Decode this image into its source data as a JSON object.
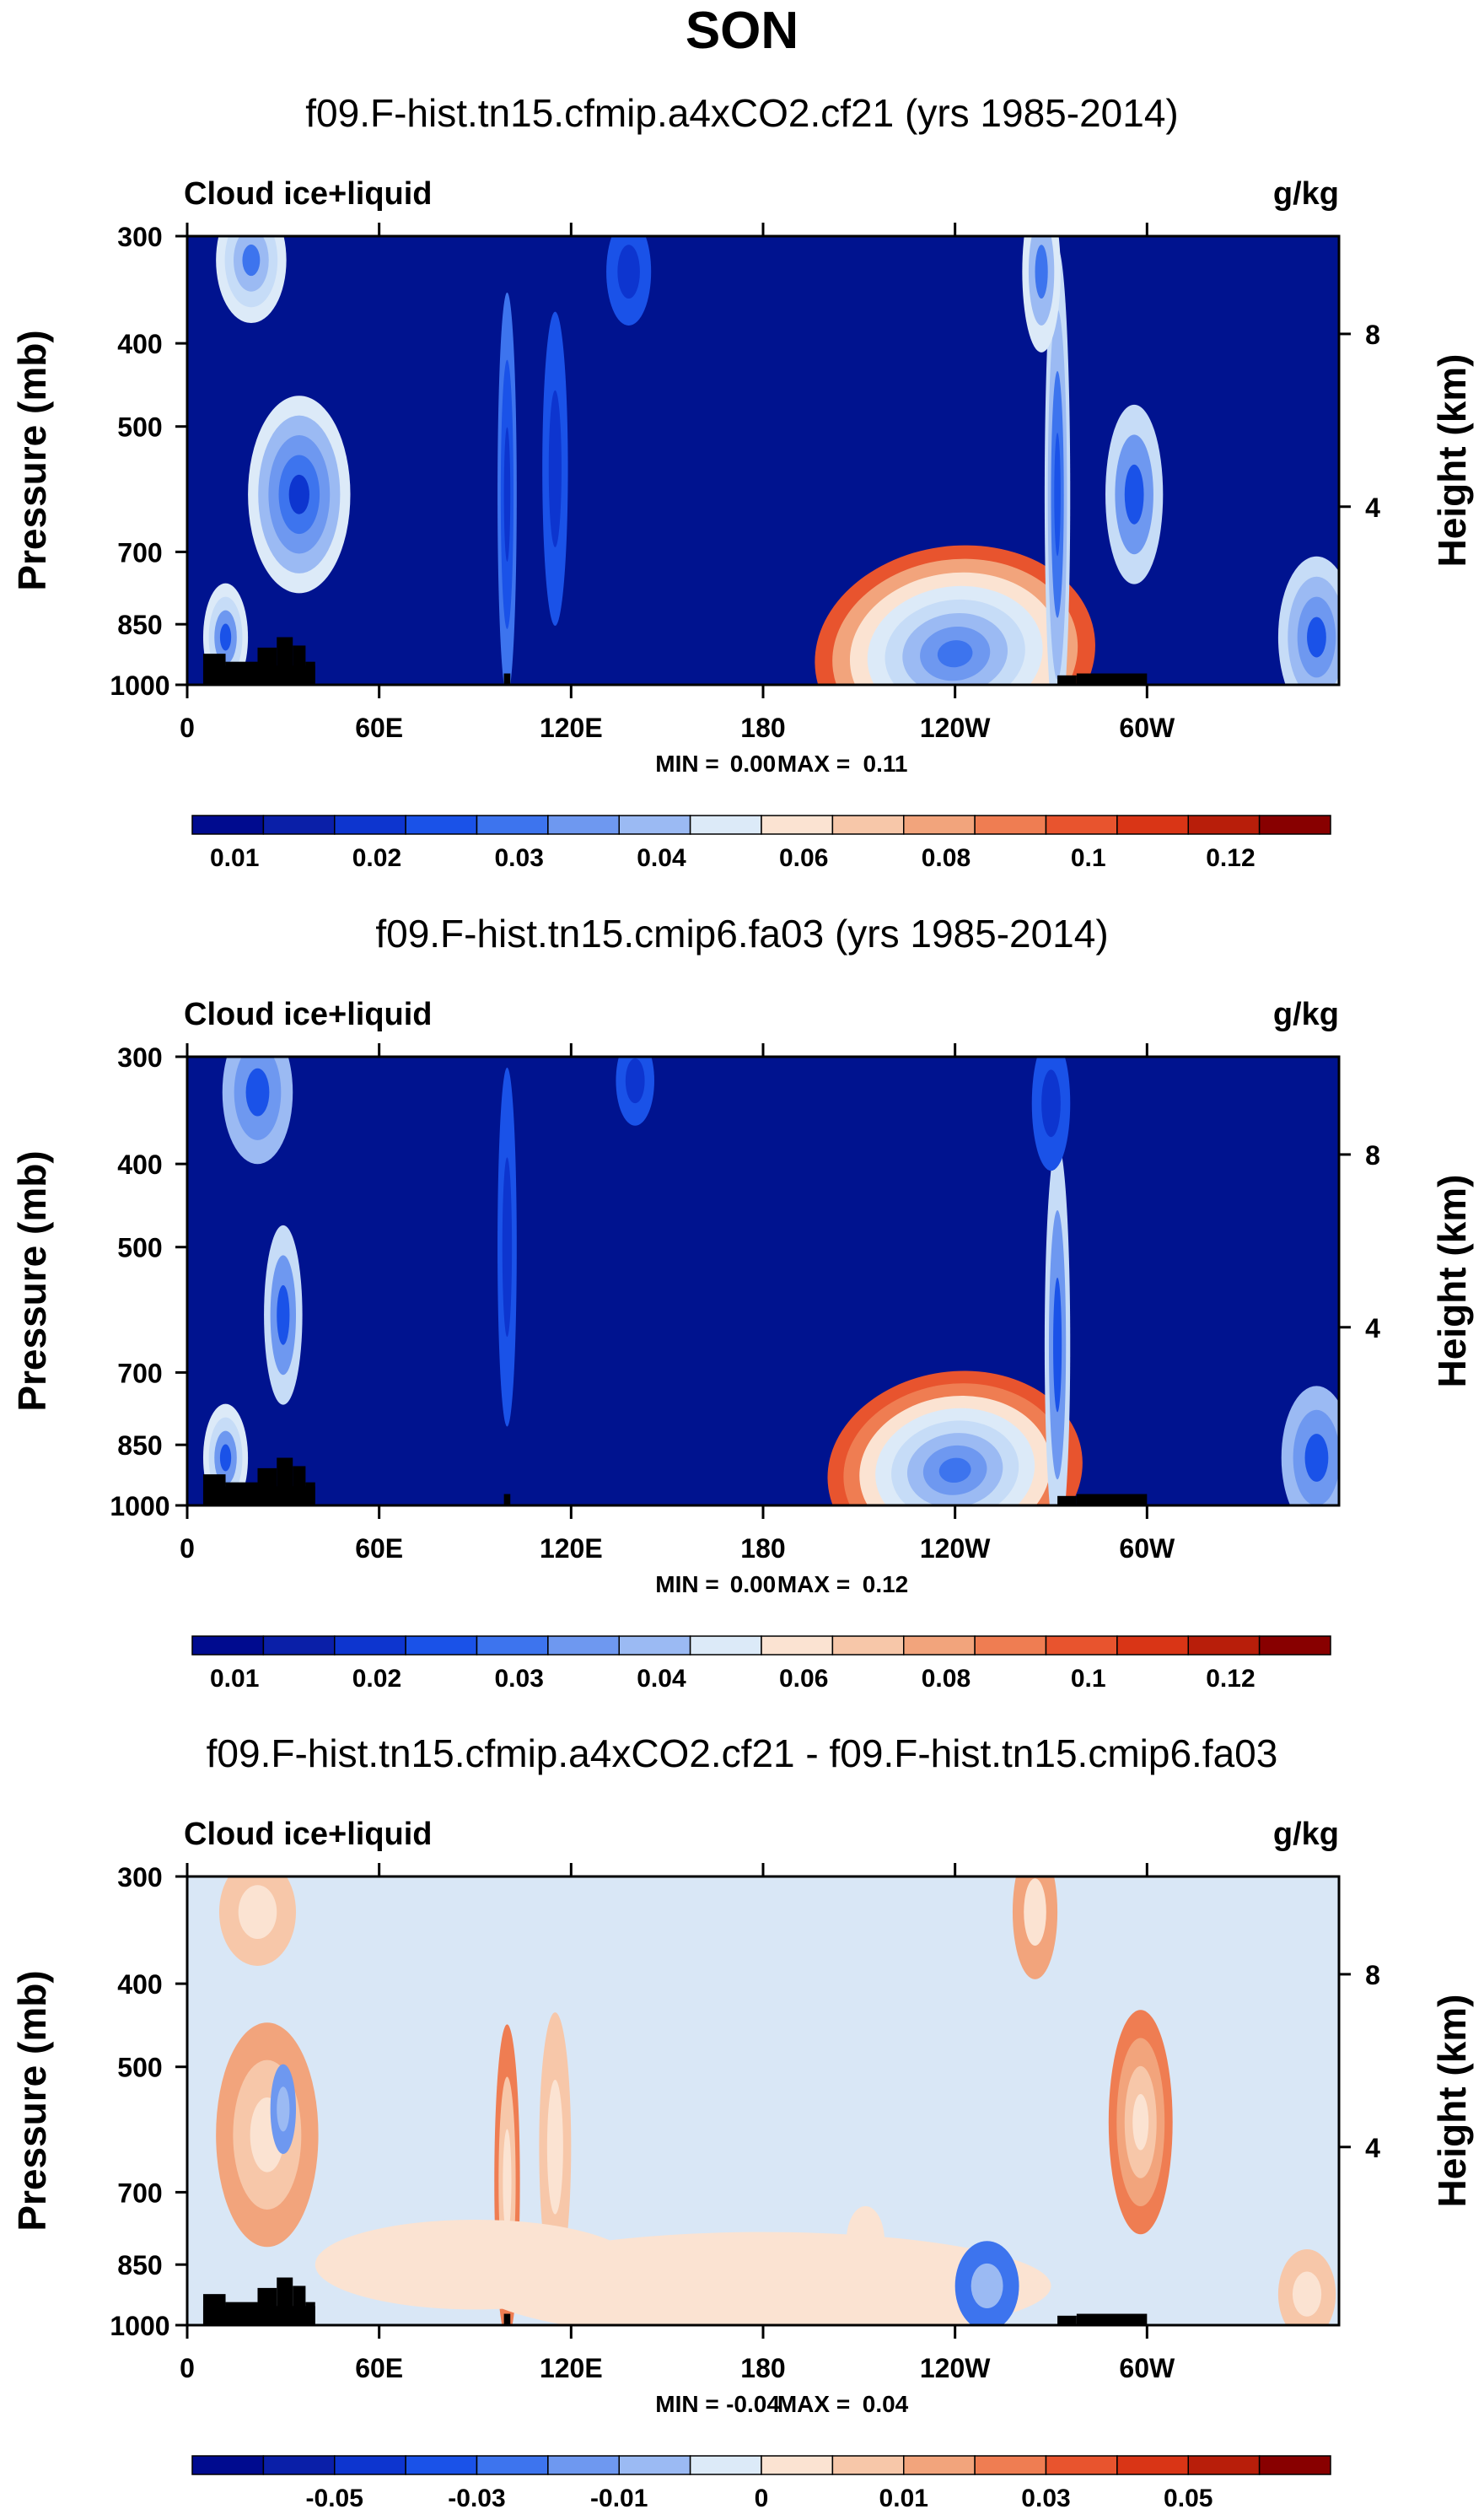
{
  "figure_title": "SON",
  "colors": {
    "blues": [
      "#000b8f",
      "#0a1fa8",
      "#0d35cf",
      "#1a52e8",
      "#3d74ee",
      "#6e98f0",
      "#9bbaf3",
      "#c6dcf7",
      "#dceaf8"
    ],
    "reds": [
      "#fbe3d2",
      "#f7c7a9",
      "#f2a47c",
      "#ef7d52",
      "#e8542e",
      "#d93516",
      "#b81e0a",
      "#880000"
    ],
    "field_base": "#00138f",
    "diff_base": "#d9e7f6",
    "terrain": "#000000"
  },
  "chart_data": [
    {
      "type": "contour",
      "panel_title": "f09.F-hist.tn15.cfmip.a4xCO2.cf21 (yrs 1985-2014)",
      "variable": "Cloud ice+liquid",
      "units": "g/kg",
      "ylabel": "Pressure (mb)",
      "y2label": "Height (km)",
      "yticks": [
        "300",
        "400",
        "500",
        "700",
        "850",
        "1000"
      ],
      "y2ticks": [
        "8",
        "4"
      ],
      "xticks": [
        "0",
        "60E",
        "120E",
        "180",
        "120W",
        "60W"
      ],
      "min_label": "MIN =",
      "min_value": "0.00",
      "max_label": "MAX =",
      "max_value": "0.11",
      "colorbar_labels": [
        "0.01",
        "0.02",
        "0.03",
        "0.04",
        "0.06",
        "0.08",
        "0.1",
        "0.12"
      ]
    },
    {
      "type": "contour",
      "panel_title": "f09.F-hist.tn15.cmip6.fa03 (yrs 1985-2014)",
      "variable": "Cloud ice+liquid",
      "units": "g/kg",
      "ylabel": "Pressure (mb)",
      "y2label": "Height (km)",
      "yticks": [
        "300",
        "400",
        "500",
        "700",
        "850",
        "1000"
      ],
      "y2ticks": [
        "8",
        "4"
      ],
      "xticks": [
        "0",
        "60E",
        "120E",
        "180",
        "120W",
        "60W"
      ],
      "min_label": "MIN =",
      "min_value": "0.00",
      "max_label": "MAX =",
      "max_value": "0.12",
      "colorbar_labels": [
        "0.01",
        "0.02",
        "0.03",
        "0.04",
        "0.06",
        "0.08",
        "0.1",
        "0.12"
      ]
    },
    {
      "type": "contour",
      "panel_title": "f09.F-hist.tn15.cfmip.a4xCO2.cf21 - f09.F-hist.tn15.cmip6.fa03",
      "variable": "Cloud ice+liquid",
      "units": "g/kg",
      "ylabel": "Pressure (mb)",
      "y2label": "Height (km)",
      "yticks": [
        "300",
        "400",
        "500",
        "700",
        "850",
        "1000"
      ],
      "y2ticks": [
        "8",
        "4"
      ],
      "xticks": [
        "0",
        "60E",
        "120E",
        "180",
        "120W",
        "60W"
      ],
      "min_label": "MIN =",
      "min_value": "-0.04",
      "max_label": "MAX =",
      "max_value": "0.04",
      "colorbar_labels": [
        "-0.05",
        "-0.03",
        "-0.01",
        "0",
        "0.01",
        "0.03",
        "0.05"
      ]
    }
  ]
}
